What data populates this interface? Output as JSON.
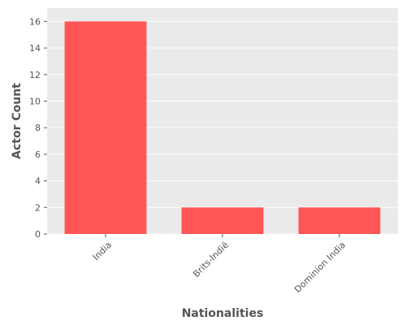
{
  "chart_data": {
    "type": "bar",
    "categories": [
      "India",
      "Brits-Indië",
      "Dominion India"
    ],
    "values": [
      16,
      2,
      2
    ],
    "xlabel": "Nationalities",
    "ylabel": "Actor Count",
    "ylim": [
      0,
      17
    ],
    "yticks": [
      0,
      2,
      4,
      6,
      8,
      10,
      12,
      14,
      16
    ],
    "grid": true,
    "colors": {
      "bar": "#ff5555",
      "plot_background": "#eaeaea",
      "grid": "#ffffff",
      "text": "#555555"
    }
  }
}
